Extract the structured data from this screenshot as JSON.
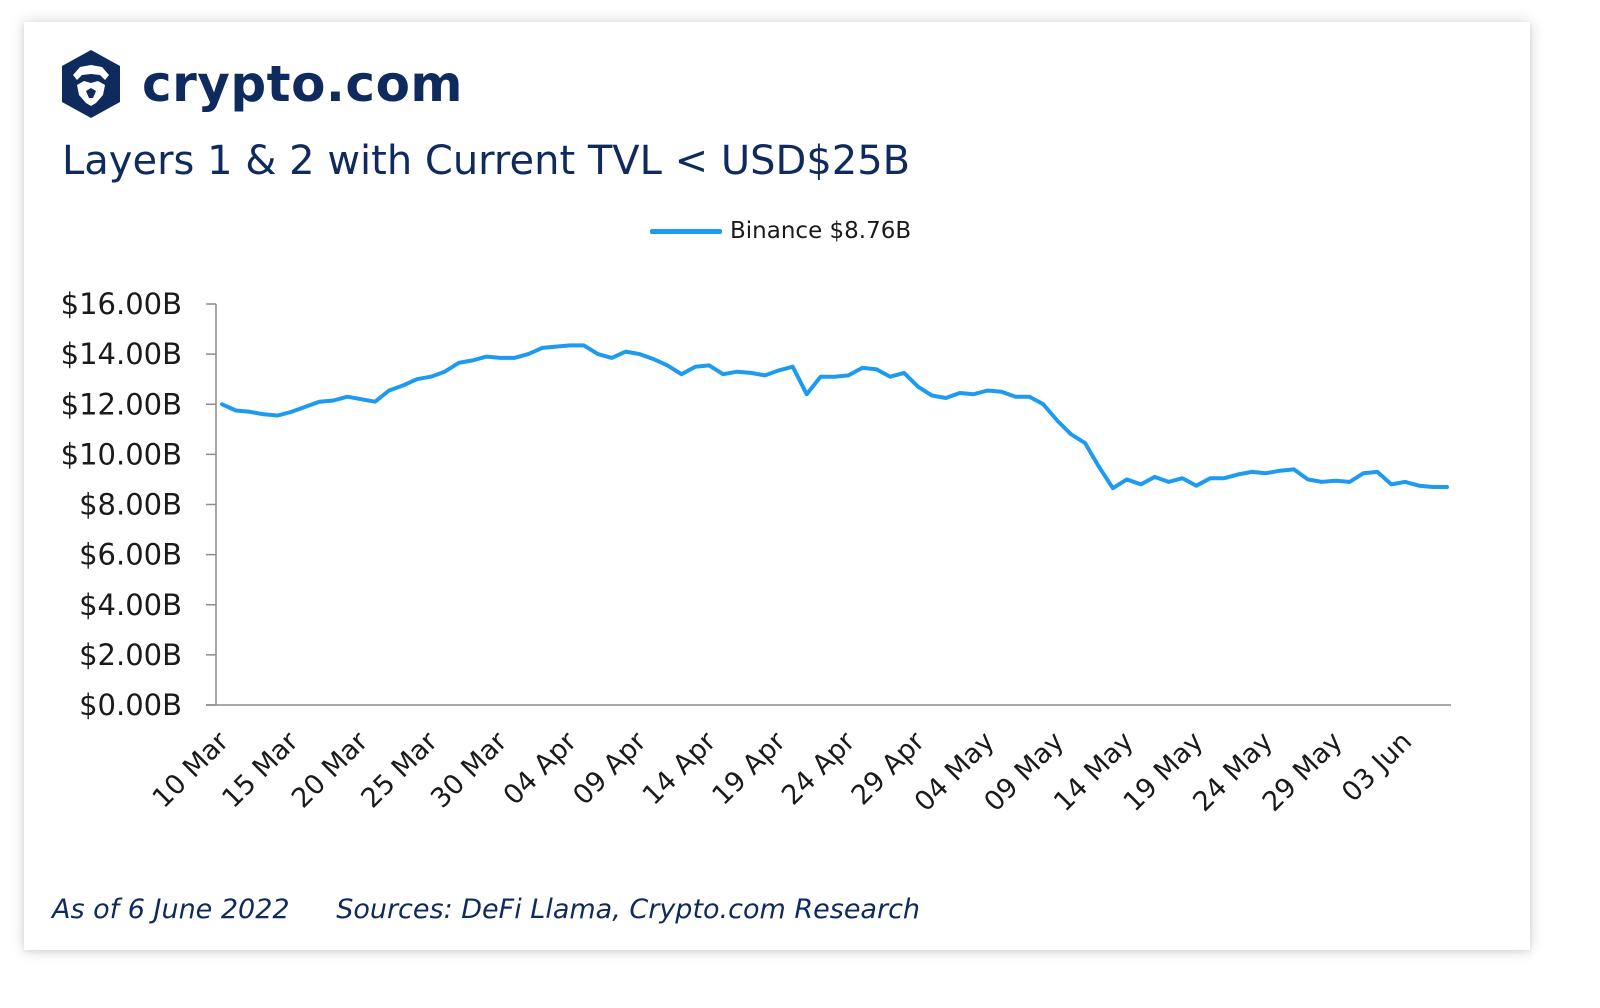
{
  "brand": {
    "name": "crypto.com",
    "logo_icon": "crypto-com-lion-shield-icon",
    "color": "#0f2a5c"
  },
  "footer": {
    "as_of": "As of 6 June 2022",
    "sources": "Sources: DeFi Llama, Crypto.com Research"
  },
  "chart_data": {
    "type": "line",
    "title": "Layers 1 & 2 with Current TVL < USD$25B",
    "xlabel": "",
    "ylabel": "",
    "ylim": [
      0,
      16
    ],
    "grid": false,
    "legend_position": "top-center",
    "y_ticks": [
      "$0.00B",
      "$2.00B",
      "$4.00B",
      "$6.00B",
      "$8.00B",
      "$10.00B",
      "$12.00B",
      "$14.00B",
      "$16.00B"
    ],
    "x_tick_labels": [
      "10 Mar",
      "15 Mar",
      "20 Mar",
      "25 Mar",
      "30 Mar",
      "04 Apr",
      "09 Apr",
      "14 Apr",
      "19 Apr",
      "24 Apr",
      "29 Apr",
      "04 May",
      "09 May",
      "14 May",
      "19 May",
      "24 May",
      "29 May",
      "03 Jun"
    ],
    "x_start": "10 Mar",
    "series": [
      {
        "name": "Binance $8.76B",
        "color": "#1e9bf0",
        "values": [
          12.0,
          11.75,
          11.7,
          11.6,
          11.55,
          11.7,
          11.9,
          12.1,
          12.15,
          12.3,
          12.2,
          12.1,
          12.55,
          12.75,
          13.0,
          13.1,
          13.3,
          13.65,
          13.75,
          13.9,
          13.85,
          13.85,
          14.0,
          14.25,
          14.3,
          14.35,
          14.35,
          14.0,
          13.85,
          14.1,
          14.0,
          13.8,
          13.55,
          13.2,
          13.5,
          13.55,
          13.2,
          13.3,
          13.25,
          13.15,
          13.35,
          13.5,
          12.4,
          13.1,
          13.1,
          13.15,
          13.45,
          13.4,
          13.1,
          13.25,
          12.7,
          12.35,
          12.25,
          12.45,
          12.4,
          12.55,
          12.5,
          12.3,
          12.3,
          12.0,
          11.35,
          10.8,
          10.45,
          9.5,
          8.65,
          9.0,
          8.8,
          9.1,
          8.9,
          9.05,
          8.75,
          9.05,
          9.05,
          9.2,
          9.3,
          9.25,
          9.35,
          9.4,
          9.0,
          8.9,
          8.95,
          8.9,
          9.25,
          9.3,
          8.8,
          8.9,
          8.75,
          8.7,
          8.7
        ]
      }
    ]
  }
}
